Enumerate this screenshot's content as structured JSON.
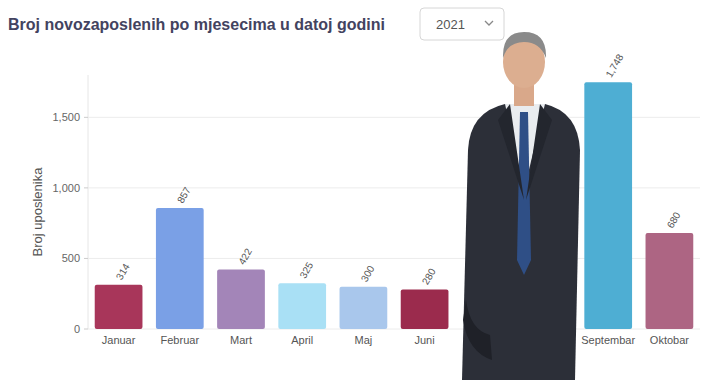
{
  "chart_data": {
    "type": "bar",
    "title": "Broj novozaposlenih po mjesecima u datoj godini",
    "subtitle": "2021",
    "ylabel": "Broj uposlenika",
    "categories": [
      "Januar",
      "Februar",
      "Mart",
      "April",
      "Maj",
      "Juni",
      null,
      null,
      "Septembar",
      "Oktobar"
    ],
    "values": [
      314,
      857,
      422,
      325,
      300,
      280,
      null,
      null,
      1748,
      680
    ],
    "value_labels": [
      "314",
      "857",
      "422",
      "325",
      "300",
      "280",
      null,
      null,
      "1,748",
      "680"
    ],
    "colors": [
      "#a8365a",
      "#7aa0e6",
      "#a385b8",
      "#a9e0f5",
      "#a9c7ec",
      "#9b2b4d",
      null,
      null,
      "#4eaed3",
      "#ad6583"
    ],
    "ylim": [
      0,
      1800
    ],
    "yticks": [
      0,
      500,
      {
        "value": 1000,
        "label": "1,000"
      },
      {
        "value": 1500,
        "label": "1,500"
      }
    ],
    "grid": true,
    "data_labels": true
  }
}
